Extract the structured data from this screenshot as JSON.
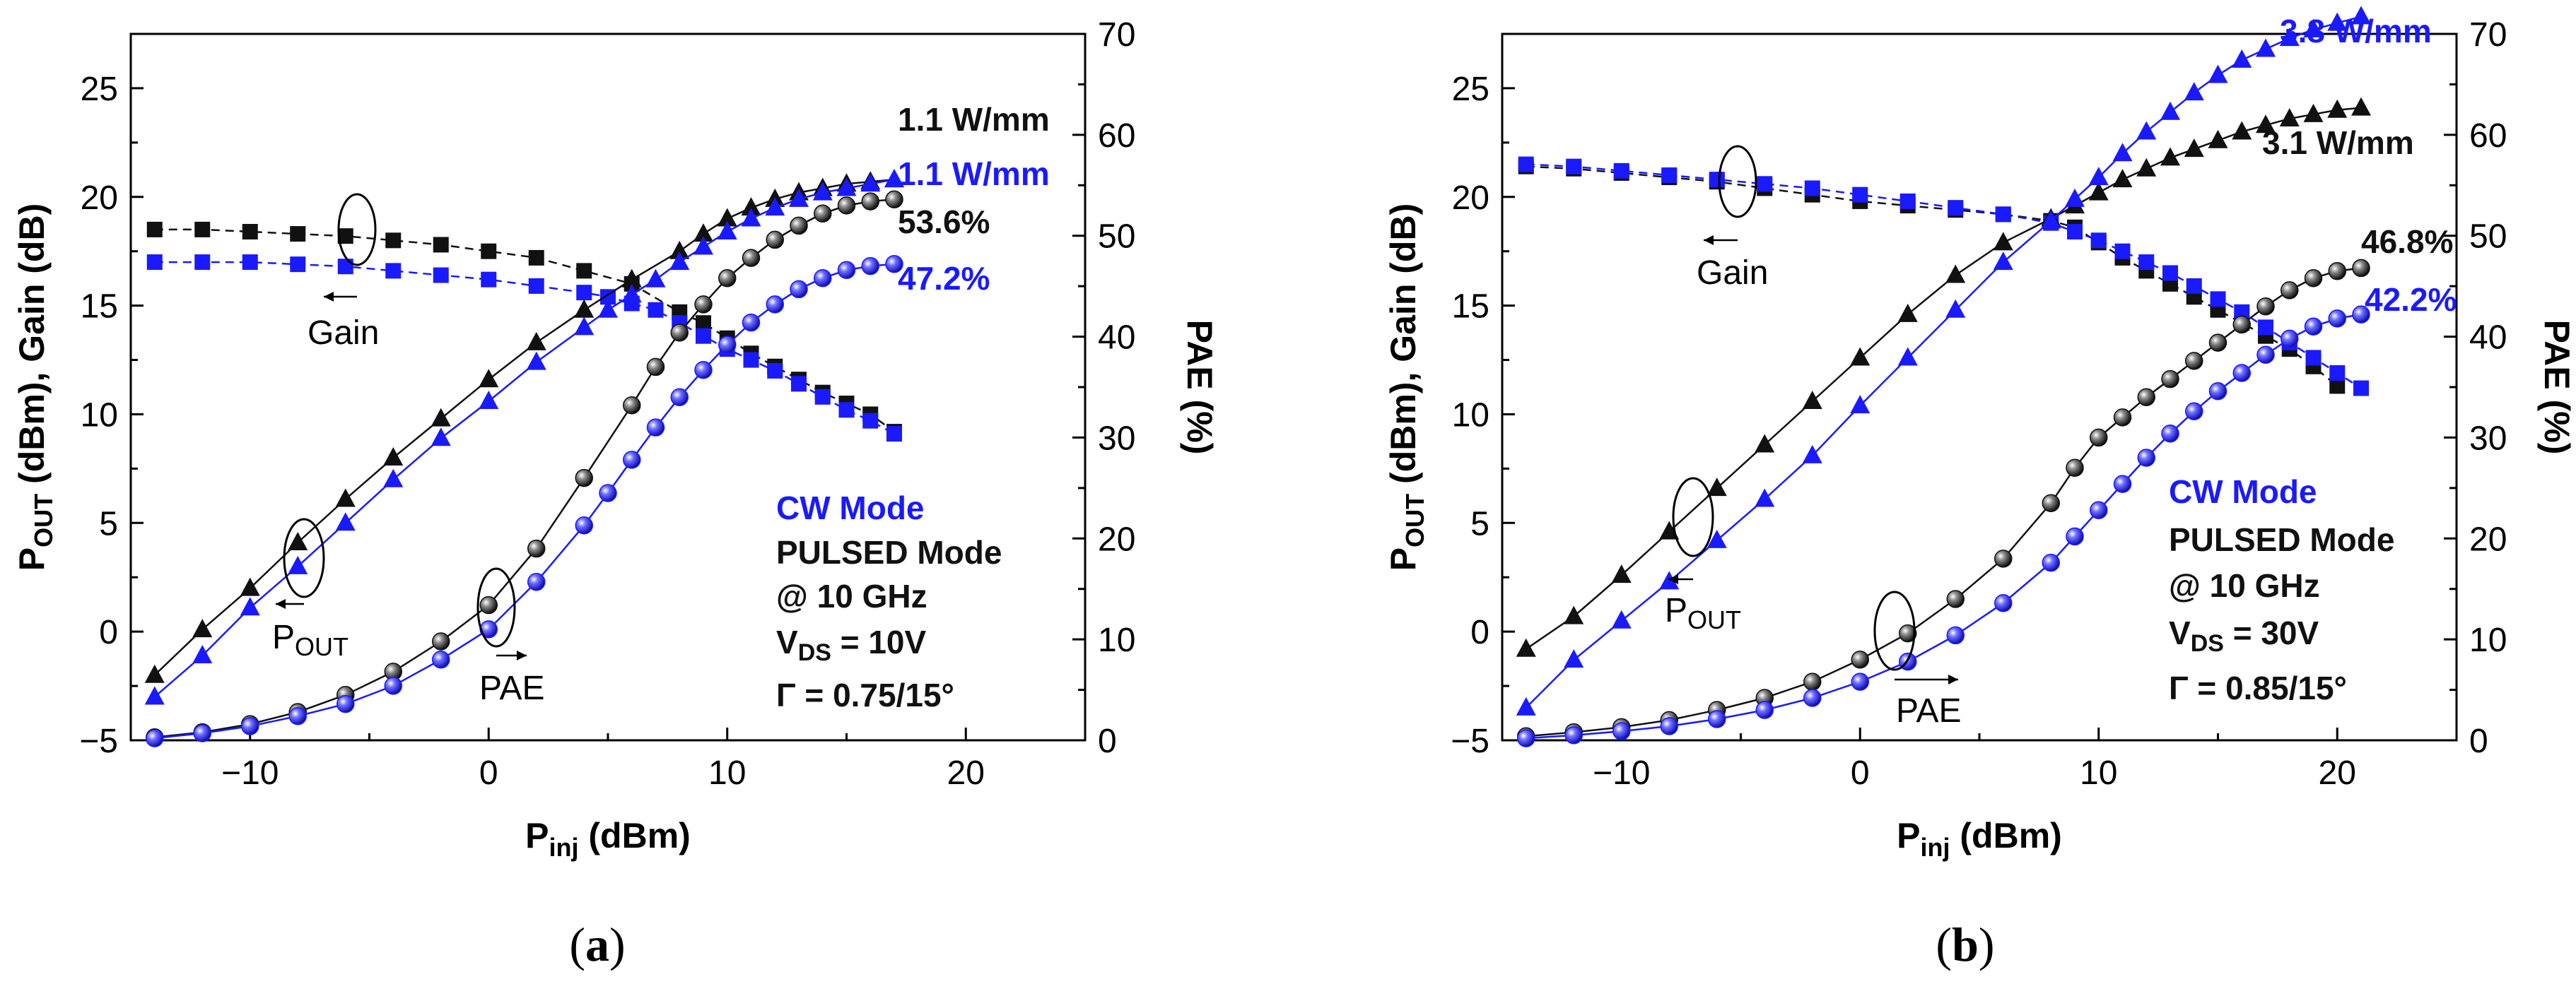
{
  "colors": {
    "pulsed": "#111111",
    "cw": "#1a1aff"
  },
  "chart_data": [
    {
      "type": "line",
      "caption": "a",
      "xlabel_main": "P",
      "xlabel_sub": "inj",
      "xlabel_unit": " (dBm)",
      "ylabel_left_main": "P",
      "ylabel_left_sub": "OUT",
      "ylabel_left_rest": " (dBm), Gain (dB)",
      "ylabel_right": "PAE (%)",
      "xlim": [
        -15,
        25
      ],
      "ylim_left": [
        -5,
        27.5
      ],
      "ylim_right": [
        0,
        70
      ],
      "xticks": [
        -10,
        0,
        10,
        20
      ],
      "yticks_left": [
        -5,
        0,
        5,
        10,
        15,
        20,
        25
      ],
      "yticks_right": [
        0,
        10,
        20,
        30,
        40,
        50,
        60,
        70
      ],
      "series": [
        {
          "name": "Gain PULSED",
          "group": "pulsed",
          "marker": "square",
          "axis": "left",
          "x": [
            -14,
            -12,
            -10,
            -8,
            -6,
            -4,
            -2,
            0,
            2,
            4,
            6,
            8,
            9,
            10,
            11,
            12,
            13,
            14,
            15,
            16,
            17
          ],
          "y": [
            18.5,
            18.5,
            18.4,
            18.3,
            18.2,
            18.0,
            17.8,
            17.5,
            17.2,
            16.6,
            16.0,
            14.7,
            14.2,
            13.5,
            12.8,
            12.2,
            11.6,
            11.0,
            10.5,
            10.0,
            9.2
          ]
        },
        {
          "name": "Gain CW",
          "group": "cw",
          "marker": "square",
          "axis": "left",
          "x": [
            -14,
            -12,
            -10,
            -8,
            -6,
            -4,
            -2,
            0,
            2,
            4,
            5,
            6,
            7,
            8,
            9,
            10,
            11,
            12,
            13,
            14,
            15,
            16,
            17
          ],
          "y": [
            17.0,
            17.0,
            17.0,
            16.9,
            16.8,
            16.6,
            16.4,
            16.2,
            15.9,
            15.6,
            15.4,
            15.1,
            14.8,
            14.2,
            13.6,
            13.0,
            12.5,
            12.0,
            11.4,
            10.8,
            10.2,
            9.7,
            9.1
          ]
        },
        {
          "name": "POUT PULSED",
          "group": "pulsed",
          "marker": "triangle",
          "axis": "left",
          "x": [
            -14,
            -12,
            -10,
            -8,
            -6,
            -4,
            -2,
            0,
            2,
            4,
            6,
            8,
            9,
            10,
            11,
            12,
            13,
            14,
            15,
            16,
            17
          ],
          "y": [
            -2.0,
            0.1,
            2.0,
            4.1,
            6.1,
            8.0,
            9.8,
            11.6,
            13.3,
            14.8,
            16.2,
            17.5,
            18.3,
            19.0,
            19.5,
            19.9,
            20.2,
            20.4,
            20.6,
            20.7,
            20.8
          ]
        },
        {
          "name": "POUT CW",
          "group": "cw",
          "marker": "triangle",
          "axis": "left",
          "x": [
            -14,
            -12,
            -10,
            -8,
            -6,
            -4,
            -2,
            0,
            2,
            4,
            5,
            6,
            7,
            8,
            9,
            10,
            11,
            12,
            13,
            14,
            15,
            16,
            17
          ],
          "y": [
            -3.0,
            -1.1,
            1.1,
            3.0,
            5.0,
            7.0,
            8.9,
            10.6,
            12.4,
            14.0,
            14.8,
            15.5,
            16.2,
            17.0,
            17.7,
            18.4,
            19.0,
            19.5,
            19.9,
            20.2,
            20.4,
            20.6,
            20.8
          ]
        },
        {
          "name": "PAE PULSED",
          "group": "pulsed",
          "marker": "sphere",
          "axis": "right",
          "x": [
            -14,
            -12,
            -10,
            -8,
            -6,
            -4,
            -2,
            0,
            2,
            4,
            6,
            7,
            8,
            9,
            10,
            11,
            12,
            13,
            14,
            15,
            16,
            17
          ],
          "y": [
            0.3,
            0.8,
            1.6,
            2.8,
            4.5,
            6.8,
            9.8,
            13.4,
            19.0,
            26.0,
            33.2,
            37.0,
            40.4,
            43.2,
            45.8,
            47.8,
            49.6,
            51.0,
            52.2,
            53.0,
            53.4,
            53.6
          ]
        },
        {
          "name": "PAE CW",
          "group": "cw",
          "marker": "sphere",
          "axis": "right",
          "x": [
            -14,
            -12,
            -10,
            -8,
            -6,
            -4,
            -2,
            0,
            2,
            4,
            5,
            6,
            7,
            8,
            9,
            10,
            11,
            12,
            13,
            14,
            15,
            16,
            17
          ],
          "y": [
            0.2,
            0.7,
            1.4,
            2.4,
            3.6,
            5.4,
            8.0,
            11.0,
            15.7,
            21.3,
            24.5,
            27.8,
            31.0,
            34.0,
            36.7,
            39.2,
            41.4,
            43.2,
            44.7,
            45.8,
            46.6,
            47.0,
            47.2
          ]
        }
      ],
      "annotations": {
        "pout_pulsed": "1.1 W/mm",
        "pout_cw": "1.1 W/mm",
        "pae_pulsed": "53.6%",
        "pae_cw": "47.2%",
        "label_gain": "Gain",
        "label_pout_main": "P",
        "label_pout_sub": "OUT",
        "label_pae": "PAE",
        "mode_cw": "CW Mode",
        "mode_pulsed": "PULSED Mode",
        "freq": "@ 10 GHz",
        "vds_main": "V",
        "vds_sub": "DS",
        "vds_value": " = 10V",
        "gamma": "Γ = 0.75/15°"
      }
    },
    {
      "type": "line",
      "caption": "b",
      "xlabel_main": "P",
      "xlabel_sub": "inj",
      "xlabel_unit": " (dBm)",
      "ylabel_left_main": "P",
      "ylabel_left_sub": "OUT",
      "ylabel_left_rest": " (dBm), Gain (dB)",
      "ylabel_right": "PAE (%)",
      "xlim": [
        -15,
        25
      ],
      "ylim_left": [
        -5,
        27.5
      ],
      "ylim_right": [
        0,
        70
      ],
      "xticks": [
        -10,
        0,
        10,
        20
      ],
      "yticks_left": [
        -5,
        0,
        5,
        10,
        15,
        20,
        25
      ],
      "yticks_right": [
        0,
        10,
        20,
        30,
        40,
        50,
        60,
        70
      ],
      "series": [
        {
          "name": "Gain PULSED",
          "group": "pulsed",
          "marker": "square",
          "axis": "left",
          "x": [
            -14,
            -12,
            -10,
            -8,
            -6,
            -4,
            -2,
            0,
            2,
            4,
            6,
            8,
            9,
            10,
            11,
            12,
            13,
            14,
            15,
            16,
            17,
            18,
            19,
            20
          ],
          "y": [
            21.4,
            21.3,
            21.1,
            20.9,
            20.7,
            20.4,
            20.1,
            19.8,
            19.6,
            19.4,
            19.2,
            18.9,
            18.6,
            17.9,
            17.2,
            16.6,
            16.0,
            15.4,
            14.8,
            14.2,
            13.6,
            13.0,
            12.2,
            11.3
          ]
        },
        {
          "name": "Gain CW",
          "group": "cw",
          "marker": "square",
          "axis": "left",
          "x": [
            -14,
            -12,
            -10,
            -8,
            -6,
            -4,
            -2,
            0,
            2,
            4,
            6,
            8,
            9,
            10,
            11,
            12,
            13,
            14,
            15,
            16,
            17,
            18,
            19,
            20,
            21
          ],
          "y": [
            21.5,
            21.4,
            21.2,
            21.0,
            20.8,
            20.6,
            20.4,
            20.1,
            19.8,
            19.5,
            19.2,
            18.8,
            18.4,
            18.0,
            17.5,
            17.0,
            16.5,
            15.9,
            15.3,
            14.7,
            14.0,
            13.3,
            12.6,
            11.9,
            11.2
          ]
        },
        {
          "name": "POUT PULSED",
          "group": "pulsed",
          "marker": "triangle",
          "axis": "left",
          "x": [
            -14,
            -12,
            -10,
            -8,
            -6,
            -4,
            -2,
            0,
            2,
            4,
            6,
            8,
            9,
            10,
            11,
            12,
            13,
            14,
            15,
            16,
            17,
            18,
            19,
            20,
            21
          ],
          "y": [
            -0.8,
            0.7,
            2.6,
            4.6,
            6.6,
            8.6,
            10.6,
            12.6,
            14.6,
            16.4,
            17.9,
            19.0,
            19.6,
            20.2,
            20.8,
            21.3,
            21.8,
            22.2,
            22.6,
            23.0,
            23.3,
            23.6,
            23.8,
            24.0,
            24.1
          ]
        },
        {
          "name": "POUT CW",
          "group": "cw",
          "marker": "triangle",
          "axis": "left",
          "x": [
            -14,
            -12,
            -10,
            -8,
            -6,
            -4,
            -2,
            0,
            2,
            4,
            6,
            8,
            9,
            10,
            11,
            12,
            13,
            14,
            15,
            16,
            17,
            18,
            19,
            20,
            21
          ],
          "y": [
            -3.5,
            -1.3,
            0.5,
            2.3,
            4.2,
            6.1,
            8.1,
            10.4,
            12.6,
            14.8,
            17.0,
            18.9,
            19.9,
            20.9,
            22.0,
            23.0,
            23.9,
            24.8,
            25.6,
            26.3,
            26.8,
            27.3,
            27.7,
            28.0,
            28.3
          ]
        },
        {
          "name": "PAE PULSED",
          "group": "pulsed",
          "marker": "sphere",
          "axis": "right",
          "x": [
            -14,
            -12,
            -10,
            -8,
            -6,
            -4,
            -2,
            0,
            2,
            4,
            6,
            8,
            9,
            10,
            11,
            12,
            13,
            14,
            15,
            16,
            17,
            18,
            19,
            20,
            21
          ],
          "y": [
            0.4,
            0.8,
            1.3,
            2.0,
            3.0,
            4.2,
            5.8,
            8.0,
            10.6,
            14.0,
            18.0,
            23.5,
            27.0,
            30.0,
            32.0,
            34.0,
            35.8,
            37.6,
            39.4,
            41.2,
            43.0,
            44.6,
            45.8,
            46.5,
            46.8
          ]
        },
        {
          "name": "PAE CW",
          "group": "cw",
          "marker": "sphere",
          "axis": "right",
          "x": [
            -14,
            -12,
            -10,
            -8,
            -6,
            -4,
            -2,
            0,
            2,
            4,
            6,
            8,
            9,
            10,
            11,
            12,
            13,
            14,
            15,
            16,
            17,
            18,
            19,
            20,
            21
          ],
          "y": [
            0.2,
            0.5,
            0.9,
            1.4,
            2.1,
            3.0,
            4.2,
            5.8,
            7.8,
            10.4,
            13.6,
            17.6,
            20.2,
            22.8,
            25.4,
            28.0,
            30.4,
            32.6,
            34.6,
            36.4,
            38.2,
            39.8,
            41.0,
            41.8,
            42.2
          ]
        }
      ],
      "annotations": {
        "pout_pulsed": "3.1 W/mm",
        "pout_cw": "3.8 W/mm",
        "pae_pulsed": "46.8%",
        "pae_cw": "42.2%",
        "label_gain": "Gain",
        "label_pout_main": "P",
        "label_pout_sub": "OUT",
        "label_pae": "PAE",
        "mode_cw": "CW Mode",
        "mode_pulsed": "PULSED Mode",
        "freq": "@ 10 GHz",
        "vds_main": "V",
        "vds_sub": "DS",
        "vds_value": " = 30V",
        "gamma": "Γ = 0.85/15°"
      }
    }
  ]
}
